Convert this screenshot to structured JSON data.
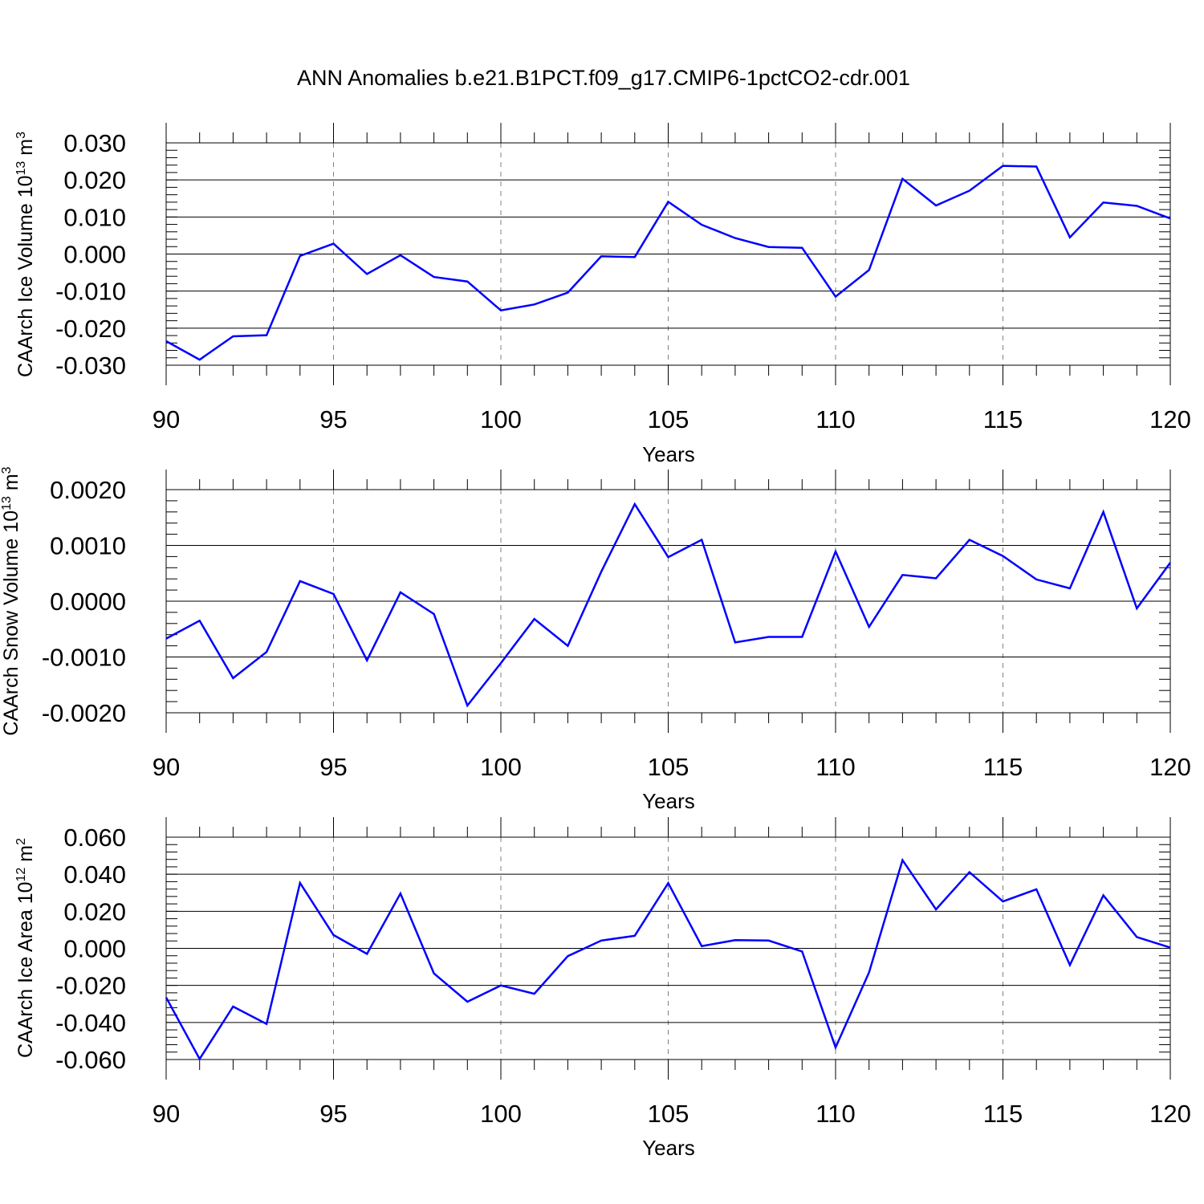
{
  "figure": {
    "title": "ANN Anomalies b.e21.B1PCT.f09_g17.CMIP6-1pctCO2-cdr.001"
  },
  "style": {
    "line_color": "#0000ff",
    "axis_color": "#000000",
    "grid_color": "#808080"
  },
  "chart_data": [
    {
      "type": "line",
      "ylabel": {
        "text": "CAArch Ice Volume 10",
        "exponent": "13",
        "unit": "m",
        "unit_exponent": "3"
      },
      "xlabel": "Years",
      "xlim": [
        90,
        120
      ],
      "ylim": [
        -0.03,
        0.03
      ],
      "x_ticks": [
        90,
        95,
        100,
        105,
        110,
        115,
        120
      ],
      "y_ticks": [
        -0.03,
        -0.02,
        -0.01,
        0.0,
        0.01,
        0.02,
        0.03
      ],
      "y_tick_labels": [
        "-0.030",
        "-0.020",
        "-0.010",
        "0.000",
        "0.010",
        "0.020",
        "0.030"
      ],
      "y_minor_step": 0.002,
      "x": [
        90,
        91,
        92,
        93,
        94,
        95,
        96,
        97,
        98,
        99,
        100,
        101,
        102,
        103,
        104,
        105,
        106,
        107,
        108,
        109,
        110,
        111,
        112,
        113,
        114,
        115,
        116,
        117,
        118,
        119,
        120
      ],
      "values": [
        -0.0235,
        -0.0285,
        -0.0222,
        -0.0219,
        -0.0005,
        0.0028,
        -0.0054,
        -0.0003,
        -0.0062,
        -0.0074,
        -0.0152,
        -0.0136,
        -0.0104,
        -0.0006,
        -0.0008,
        0.0141,
        0.0079,
        0.0043,
        0.0019,
        0.0017,
        -0.0115,
        -0.0043,
        0.0203,
        0.0131,
        0.0171,
        0.0238,
        0.0236,
        0.0045,
        0.0139,
        0.013,
        0.0096
      ],
      "grid": "dashed vertical lines at major x ticks"
    },
    {
      "type": "line",
      "ylabel": {
        "text": "CAArch Snow Volume 10",
        "exponent": "13",
        "unit": "m",
        "unit_exponent": "3"
      },
      "xlabel": "Years",
      "xlim": [
        90,
        120
      ],
      "ylim": [
        -0.002,
        0.002
      ],
      "x_ticks": [
        90,
        95,
        100,
        105,
        110,
        115,
        120
      ],
      "y_ticks": [
        -0.002,
        -0.001,
        0.0,
        0.001,
        0.002
      ],
      "y_tick_labels": [
        "-0.0020",
        "-0.0010",
        "0.0000",
        "0.0010",
        "0.0020"
      ],
      "y_minor_step": 0.0002,
      "x": [
        90,
        91,
        92,
        93,
        94,
        95,
        96,
        97,
        98,
        99,
        100,
        101,
        102,
        103,
        104,
        105,
        106,
        107,
        108,
        109,
        110,
        111,
        112,
        113,
        114,
        115,
        116,
        117,
        118,
        119,
        120
      ],
      "values": [
        -0.00067,
        -0.00035,
        -0.00138,
        -0.00091,
        0.00036,
        0.00013,
        -0.00106,
        0.00016,
        -0.00023,
        -0.00187,
        -0.00111,
        -0.00032,
        -0.0008,
        0.00053,
        0.00174,
        0.00079,
        0.0011,
        -0.00074,
        -0.00064,
        -0.00064,
        0.00089,
        -0.00046,
        0.00047,
        0.00041,
        0.0011,
        0.00081,
        0.00039,
        0.00023,
        0.0016,
        -0.00013,
        0.00069
      ],
      "grid": "dashed vertical lines at major x ticks"
    },
    {
      "type": "line",
      "ylabel": {
        "text": "CAArch Ice Area 10",
        "exponent": "12",
        "unit": "m",
        "unit_exponent": "2"
      },
      "xlabel": "Years",
      "xlim": [
        90,
        120
      ],
      "ylim": [
        -0.06,
        0.06
      ],
      "x_ticks": [
        90,
        95,
        100,
        105,
        110,
        115,
        120
      ],
      "y_ticks": [
        -0.06,
        -0.04,
        -0.02,
        0.0,
        0.02,
        0.04,
        0.06
      ],
      "y_tick_labels": [
        "-0.060",
        "-0.040",
        "-0.020",
        "0.000",
        "0.020",
        "0.040",
        "0.060"
      ],
      "y_minor_step": 0.004,
      "x": [
        90,
        91,
        92,
        93,
        94,
        95,
        96,
        97,
        98,
        99,
        100,
        101,
        102,
        103,
        104,
        105,
        106,
        107,
        108,
        109,
        110,
        111,
        112,
        113,
        114,
        115,
        116,
        117,
        118,
        119,
        120
      ],
      "values": [
        -0.0265,
        -0.0597,
        -0.0314,
        -0.0408,
        0.0353,
        0.0072,
        -0.003,
        0.0296,
        -0.0135,
        -0.0288,
        -0.02,
        -0.0245,
        -0.0042,
        0.0042,
        0.0068,
        0.0352,
        0.0012,
        0.0044,
        0.0042,
        -0.0017,
        -0.0535,
        -0.013,
        0.0476,
        0.021,
        0.0411,
        0.0253,
        0.0319,
        -0.009,
        0.0286,
        0.0061,
        0.0004
      ],
      "grid": "dashed vertical lines at major x ticks"
    }
  ]
}
